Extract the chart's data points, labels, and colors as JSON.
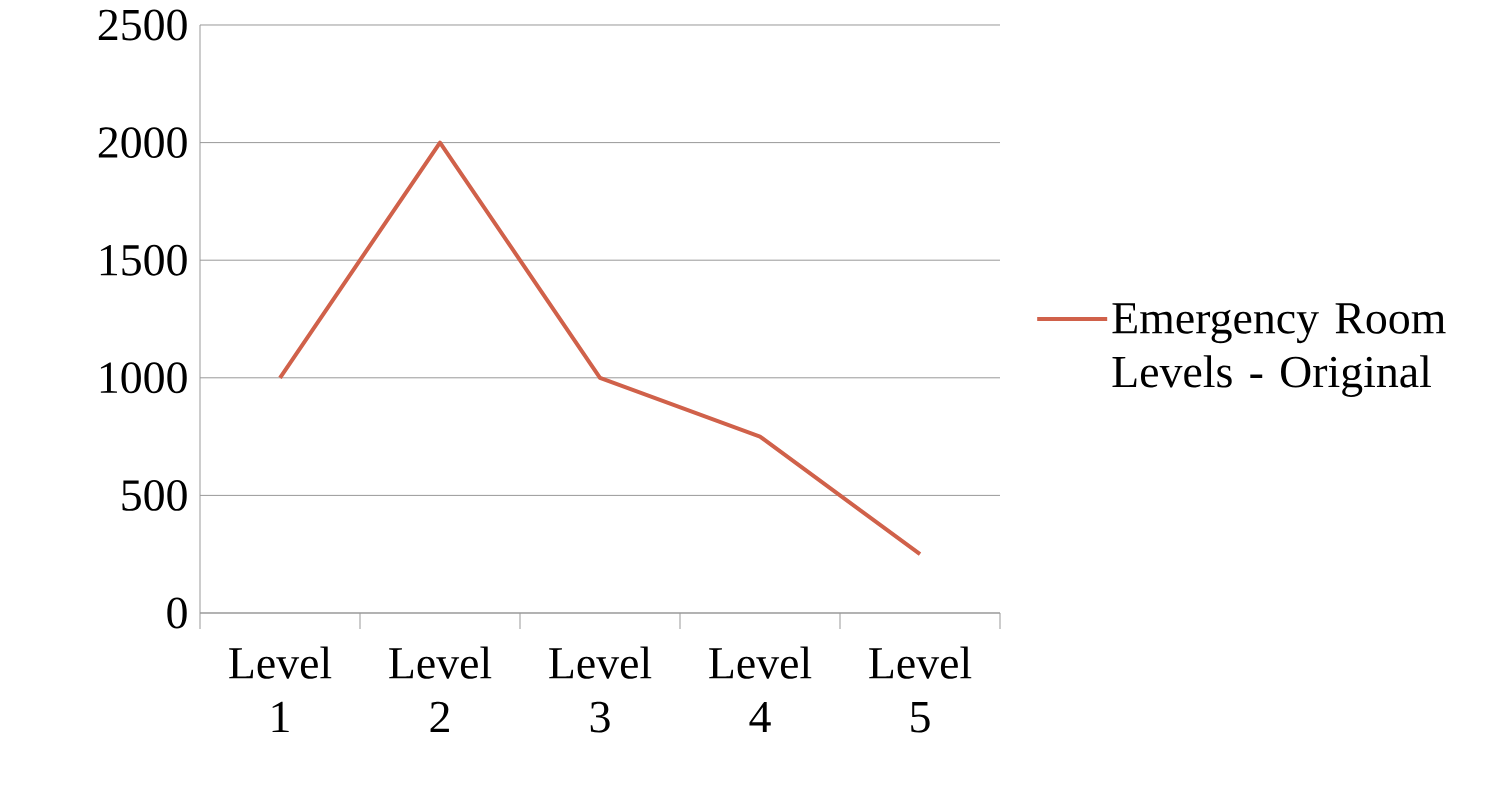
{
  "chart_data": {
    "type": "line",
    "categories": [
      "Level 1",
      "Level 2",
      "Level 3",
      "Level 4",
      "Level 5"
    ],
    "series": [
      {
        "name": "Emergency Room Levels - Original",
        "color": "#d0614a",
        "values": [
          1000,
          2000,
          1000,
          750,
          250
        ]
      }
    ],
    "ylim": [
      0,
      2500
    ],
    "yticks": [
      0,
      500,
      1000,
      1500,
      2000,
      2500
    ],
    "grid": "y",
    "legend": "right",
    "marker": "none",
    "line_style": "solid"
  }
}
